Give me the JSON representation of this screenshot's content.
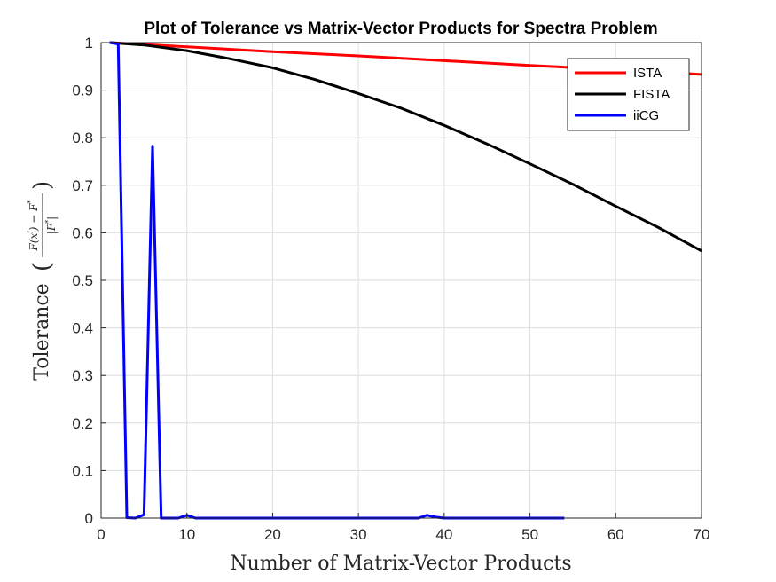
{
  "chart_data": {
    "type": "line",
    "title": "Plot of Tolerance vs Matrix-Vector Products for Spectra Problem",
    "xlabel": "Number of Matrix-Vector Products",
    "ylabel": "Tolerance",
    "ylabel_formula": "F(x^i) − F* / |F*|",
    "xlim": [
      0,
      70
    ],
    "ylim": [
      0,
      1
    ],
    "xticks": [
      "0",
      "10",
      "20",
      "30",
      "40",
      "50",
      "60",
      "70"
    ],
    "yticks": [
      "0",
      "0.1",
      "0.2",
      "0.3",
      "0.4",
      "0.5",
      "0.6",
      "0.7",
      "0.8",
      "0.9",
      "1"
    ],
    "grid": true,
    "legend_position": "top-right",
    "series": [
      {
        "name": "ISTA",
        "color": "#ff0000",
        "points": [
          [
            1,
            1.0
          ],
          [
            10,
            0.991
          ],
          [
            20,
            0.981
          ],
          [
            30,
            0.972
          ],
          [
            40,
            0.962
          ],
          [
            50,
            0.952
          ],
          [
            60,
            0.943
          ],
          [
            70,
            0.933
          ]
        ]
      },
      {
        "name": "FISTA",
        "color": "#000000",
        "points": [
          [
            1,
            1.0
          ],
          [
            5,
            0.995
          ],
          [
            10,
            0.983
          ],
          [
            15,
            0.966
          ],
          [
            20,
            0.947
          ],
          [
            25,
            0.922
          ],
          [
            30,
            0.893
          ],
          [
            35,
            0.862
          ],
          [
            40,
            0.826
          ],
          [
            45,
            0.787
          ],
          [
            50,
            0.745
          ],
          [
            55,
            0.702
          ],
          [
            60,
            0.656
          ],
          [
            65,
            0.611
          ],
          [
            70,
            0.562
          ]
        ]
      },
      {
        "name": "iiCG",
        "color": "#0000ff",
        "points": [
          [
            1,
            1.0
          ],
          [
            2,
            0.997
          ],
          [
            3,
            0.001
          ],
          [
            4,
            0.0
          ],
          [
            5,
            0.007
          ],
          [
            6,
            0.782
          ],
          [
            7,
            0.0
          ],
          [
            8,
            0.0
          ],
          [
            9,
            0.0
          ],
          [
            10,
            0.006
          ],
          [
            11,
            0.0
          ],
          [
            20,
            0.0
          ],
          [
            30,
            0.0
          ],
          [
            37,
            0.0
          ],
          [
            38,
            0.006
          ],
          [
            39,
            0.002
          ],
          [
            40,
            0.0
          ],
          [
            45,
            0.0
          ],
          [
            50,
            0.0
          ],
          [
            54,
            0.0
          ]
        ]
      }
    ]
  }
}
